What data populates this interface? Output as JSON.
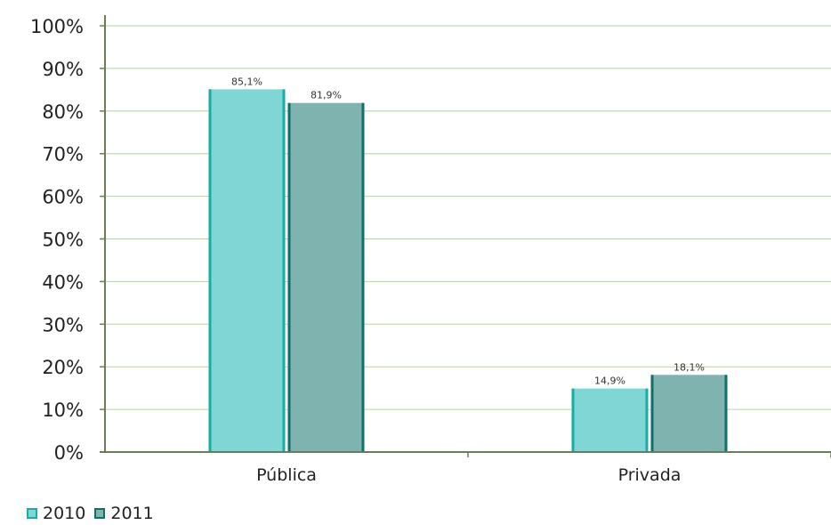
{
  "chart_data": {
    "type": "bar",
    "categories": [
      "Pública",
      "Privada"
    ],
    "series": [
      {
        "name": "2010",
        "values": [
          85.1,
          14.9
        ],
        "labels": [
          "85,1%",
          "14,9%"
        ],
        "color": "#7fd6d4",
        "edge": "#1aaba5"
      },
      {
        "name": "2011",
        "values": [
          81.9,
          18.1
        ],
        "labels": [
          "81,9%",
          "18,1%"
        ],
        "color": "#7fb3b0",
        "edge": "#0f6f6a"
      }
    ],
    "ylim": [
      0,
      100
    ],
    "yticks": [
      "0%",
      "10%",
      "20%",
      "30%",
      "40%",
      "50%",
      "60%",
      "70%",
      "80%",
      "90%",
      "100%"
    ],
    "grid": true,
    "grid_color": "#b7d48f",
    "axis_color": "#6a7d5a",
    "legend_position": "bottom-left"
  }
}
